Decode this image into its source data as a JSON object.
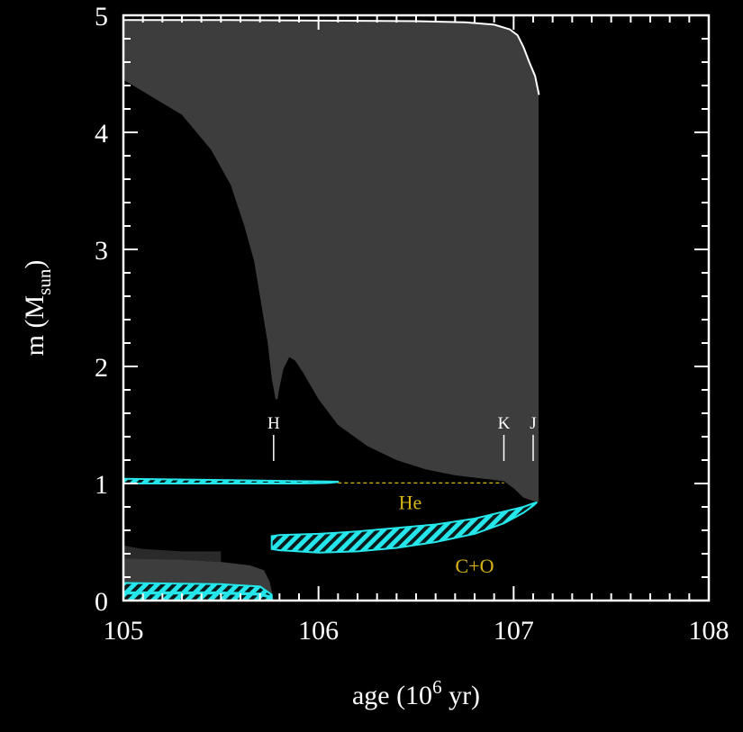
{
  "chart_data": {
    "type": "area",
    "xlabel": {
      "base": "age (10",
      "sup": "6",
      "tail": " yr)"
    },
    "ylabel": {
      "base": "m (M",
      "sub": "sun",
      "tail": ")"
    },
    "xlim": [
      105,
      108
    ],
    "ylim": [
      0,
      5
    ],
    "xticks": [
      "105",
      "106",
      "107",
      "108"
    ],
    "yticks": [
      "0",
      "1",
      "2",
      "3",
      "4",
      "5"
    ],
    "colors": {
      "background": "#000000",
      "convective": "#3d3d3d",
      "burning": "#25e6ea",
      "region_label": "#d8b514",
      "axes": "#ffffff"
    },
    "markers": [
      {
        "label": "H",
        "x": 105.77
      },
      {
        "label": "K",
        "x": 106.95
      },
      {
        "label": "J",
        "x": 107.1
      }
    ],
    "region_labels": [
      {
        "label": "He",
        "x": 106.47,
        "y": 0.78
      },
      {
        "label": "C+O",
        "x": 106.8,
        "y": 0.24
      }
    ],
    "stellar_mass": {
      "x": [
        105.0,
        105.5,
        106.0,
        106.5,
        106.75,
        106.9,
        106.98,
        107.02,
        107.05,
        107.08,
        107.11,
        107.13
      ],
      "y": [
        4.96,
        4.96,
        4.955,
        4.95,
        4.94,
        4.92,
        4.88,
        4.83,
        4.73,
        4.6,
        4.48,
        4.32
      ]
    },
    "envelope_convection": {
      "x": [
        105.0,
        105.15,
        105.3,
        105.45,
        105.55,
        105.62,
        105.67,
        105.71,
        105.74,
        105.76,
        105.78,
        105.79,
        105.8,
        105.82,
        105.85,
        105.88,
        105.92,
        106.0,
        106.1,
        106.25,
        106.4,
        106.55,
        106.7,
        106.85,
        106.95,
        107.0,
        107.05,
        107.1,
        107.13
      ],
      "y": [
        4.45,
        4.3,
        4.15,
        3.85,
        3.55,
        3.2,
        2.9,
        2.5,
        2.2,
        1.9,
        1.72,
        1.72,
        1.82,
        1.98,
        2.08,
        2.05,
        1.95,
        1.72,
        1.5,
        1.32,
        1.2,
        1.12,
        1.07,
        1.04,
        1.02,
        0.96,
        0.88,
        0.85,
        0.84
      ]
    },
    "core_convection": {
      "x": [
        105.0,
        105.3,
        105.5,
        105.65,
        105.72,
        105.75,
        105.77
      ],
      "y": [
        0.36,
        0.35,
        0.33,
        0.3,
        0.26,
        0.16,
        0.0
      ]
    },
    "core_convection_edge": {
      "x": [
        105.0,
        105.1,
        105.3,
        105.5
      ],
      "y": [
        0.47,
        0.44,
        0.42,
        0.42
      ]
    },
    "h_shell_early": {
      "x": [
        105.0,
        105.5,
        105.9,
        106.05,
        106.1
      ],
      "upper": [
        1.04,
        1.03,
        1.02,
        1.018,
        1.015
      ],
      "lower": [
        1.0,
        1.0,
        1.0,
        1.005,
        1.012
      ]
    },
    "h_shell_dashed": {
      "x": [
        106.1,
        106.95
      ],
      "y": [
        1.005,
        1.005
      ]
    },
    "he_shell": {
      "x": [
        105.76,
        105.8,
        106.0,
        106.2,
        106.4,
        106.6,
        106.8,
        106.95,
        107.05,
        107.1,
        107.12
      ],
      "upper": [
        0.55,
        0.56,
        0.57,
        0.59,
        0.62,
        0.65,
        0.7,
        0.76,
        0.8,
        0.83,
        0.84
      ],
      "lower": [
        0.44,
        0.43,
        0.41,
        0.42,
        0.45,
        0.5,
        0.57,
        0.66,
        0.75,
        0.81,
        0.84
      ]
    },
    "core_burning_upper": {
      "x": [
        105.0,
        105.5,
        105.7,
        105.76
      ],
      "upper": [
        0.15,
        0.14,
        0.12,
        0.05
      ],
      "lower": [
        0.07,
        0.07,
        0.06,
        0.03
      ]
    },
    "core_burning_lower": {
      "x": [
        105.0,
        105.5,
        105.7,
        105.76
      ],
      "upper": [
        0.06,
        0.06,
        0.05,
        0.02
      ],
      "lower": [
        0.0,
        0.0,
        0.0,
        0.0
      ]
    }
  }
}
